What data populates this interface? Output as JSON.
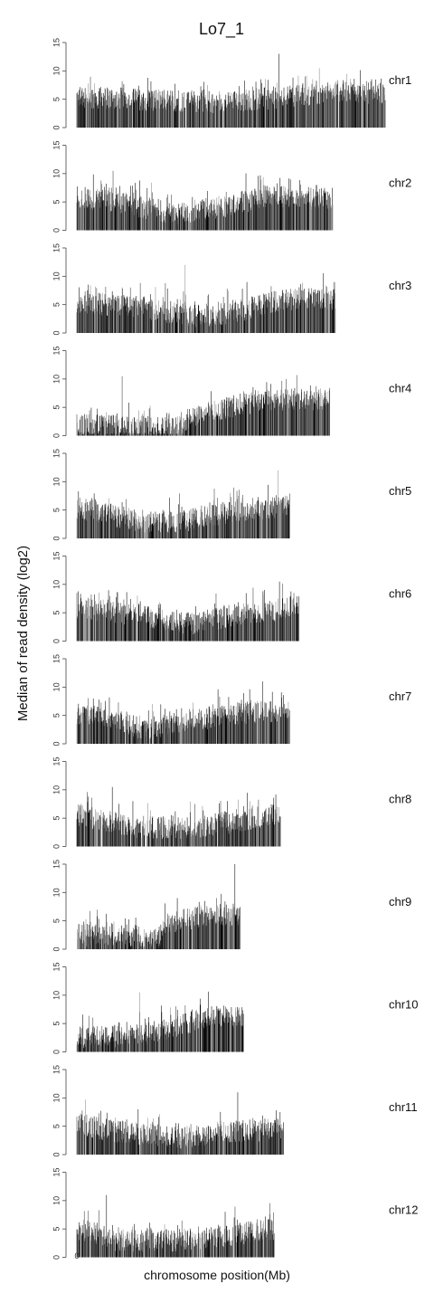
{
  "chart_data": {
    "type": "bar",
    "title": "Lo7_1",
    "xlabel": "chromosome position(Mb)",
    "ylabel": "Median of read density (log2)",
    "x_ticks": [
      "0"
    ],
    "ylim": [
      0,
      15
    ],
    "y_ticks": [
      0,
      5,
      10,
      15
    ],
    "grid": false,
    "legend": "none",
    "bar_color": "#000000",
    "panels": [
      {
        "name": "chr1",
        "length_frac": 1.0,
        "profile": [
          [
            0,
            5.5
          ],
          [
            0.2,
            5.0
          ],
          [
            0.45,
            4.5
          ],
          [
            0.7,
            5.5
          ],
          [
            0.85,
            6.5
          ],
          [
            1.0,
            6.0
          ]
        ],
        "peak": 13.0
      },
      {
        "name": "chr2",
        "length_frac": 0.83,
        "profile": [
          [
            0,
            6.0
          ],
          [
            0.2,
            4.5
          ],
          [
            0.4,
            3.0
          ],
          [
            0.55,
            4.0
          ],
          [
            0.75,
            6.0
          ],
          [
            1.0,
            5.5
          ]
        ],
        "peak": 10.5
      },
      {
        "name": "chr3",
        "length_frac": 0.84,
        "profile": [
          [
            0,
            5.5
          ],
          [
            0.25,
            4.5
          ],
          [
            0.45,
            3.0
          ],
          [
            0.6,
            3.5
          ],
          [
            0.8,
            6.0
          ],
          [
            1.0,
            6.0
          ]
        ],
        "peak": 12.0
      },
      {
        "name": "chr4",
        "length_frac": 0.82,
        "profile": [
          [
            0,
            2.0
          ],
          [
            0.2,
            1.5
          ],
          [
            0.4,
            1.5
          ],
          [
            0.45,
            3.5
          ],
          [
            0.7,
            6.0
          ],
          [
            1.0,
            6.5
          ]
        ],
        "peak": 10.5
      },
      {
        "name": "chr5",
        "length_frac": 0.69,
        "profile": [
          [
            0,
            5.5
          ],
          [
            0.3,
            3.0
          ],
          [
            0.5,
            3.0
          ],
          [
            0.7,
            4.5
          ],
          [
            1.0,
            6.0
          ]
        ],
        "peak": 12.0
      },
      {
        "name": "chr6",
        "length_frac": 0.72,
        "profile": [
          [
            0,
            6.0
          ],
          [
            0.3,
            4.5
          ],
          [
            0.5,
            3.0
          ],
          [
            0.7,
            4.5
          ],
          [
            1.0,
            6.0
          ]
        ],
        "peak": 10.5
      },
      {
        "name": "chr7",
        "length_frac": 0.69,
        "profile": [
          [
            0,
            5.5
          ],
          [
            0.2,
            4.5
          ],
          [
            0.3,
            2.5
          ],
          [
            0.5,
            4.0
          ],
          [
            0.8,
            5.5
          ],
          [
            1.0,
            5.5
          ]
        ],
        "peak": 11.0
      },
      {
        "name": "chr8",
        "length_frac": 0.66,
        "profile": [
          [
            0,
            5.5
          ],
          [
            0.3,
            3.5
          ],
          [
            0.5,
            3.0
          ],
          [
            0.8,
            4.5
          ],
          [
            1.0,
            6.0
          ]
        ],
        "peak": 10.5
      },
      {
        "name": "chr9",
        "length_frac": 0.53,
        "profile": [
          [
            0,
            2.5
          ],
          [
            0.3,
            2.5
          ],
          [
            0.5,
            2.0
          ],
          [
            0.55,
            4.5
          ],
          [
            0.8,
            6.0
          ],
          [
            1.0,
            6.0
          ]
        ],
        "peak": 16.0
      },
      {
        "name": "chr10",
        "length_frac": 0.54,
        "profile": [
          [
            0,
            2.5
          ],
          [
            0.4,
            3.0
          ],
          [
            0.6,
            4.5
          ],
          [
            0.85,
            6.5
          ],
          [
            1.0,
            6.0
          ]
        ],
        "peak": 10.5
      },
      {
        "name": "chr11",
        "length_frac": 0.67,
        "profile": [
          [
            0,
            5.5
          ],
          [
            0.2,
            4.0
          ],
          [
            0.5,
            3.0
          ],
          [
            0.7,
            4.0
          ],
          [
            1.0,
            4.5
          ]
        ],
        "peak": 11.0
      },
      {
        "name": "chr12",
        "length_frac": 0.64,
        "profile": [
          [
            0,
            5.0
          ],
          [
            0.2,
            3.0
          ],
          [
            0.5,
            3.0
          ],
          [
            0.8,
            4.0
          ],
          [
            1.0,
            5.0
          ]
        ],
        "peak": 11.0
      }
    ]
  }
}
